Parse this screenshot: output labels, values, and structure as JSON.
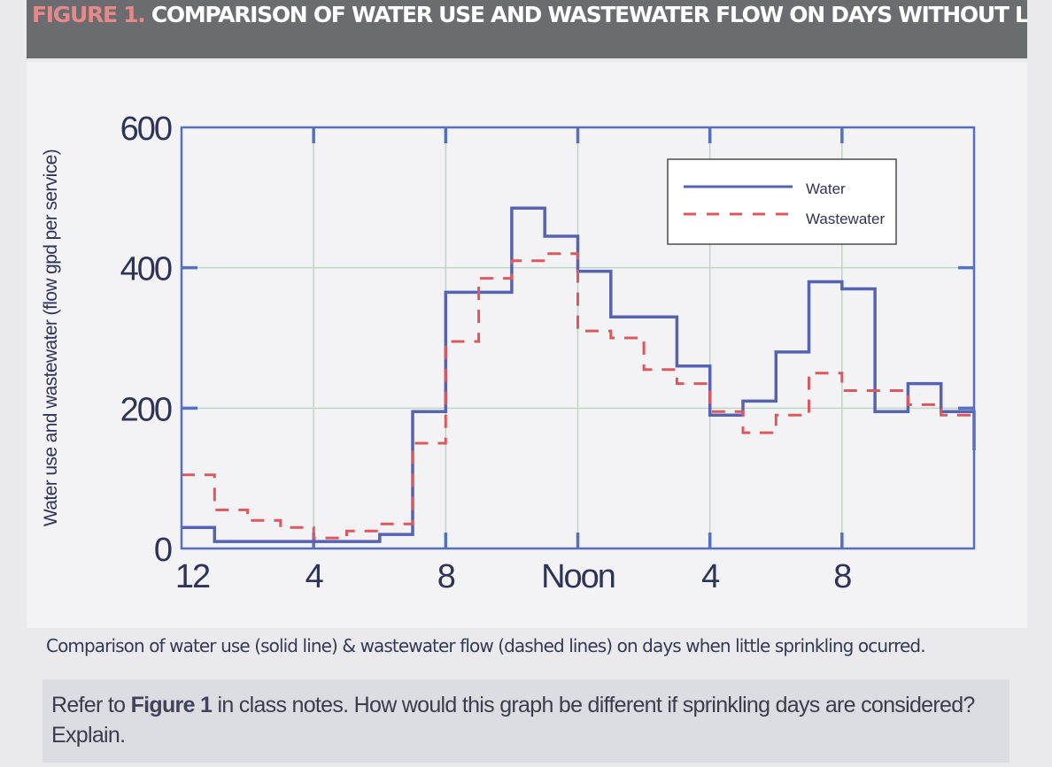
{
  "header": {
    "figure_label": "FIGURE 1.",
    "title": "COMPARISON OF WATER USE AND WASTEWATER FLOW ON DAYS WITHOUT LAWN SPRINKLIN"
  },
  "caption": "Comparison of water use (solid line) & wastewater flow (dashed lines) on days when little sprinkling ocurred.",
  "question": {
    "prefix": "Refer to ",
    "bold": "Figure 1",
    "suffix": " in class notes. How would this graph be different if sprinkling days are considered? Explain."
  },
  "chart_data": {
    "type": "line",
    "step": true,
    "ylabel": "Water use and wastewater (flow gpd per service)",
    "xlabel": "",
    "ylim": [
      0,
      600
    ],
    "xlim": [
      0,
      24
    ],
    "y_ticks": [
      0,
      200,
      400,
      600
    ],
    "y_tick_labels": [
      "0",
      "200",
      "400",
      "600"
    ],
    "x_ticks": [
      0,
      4,
      8,
      12,
      16,
      20
    ],
    "x_tick_labels": [
      "12",
      "4",
      "8",
      "Noon",
      "4",
      "8"
    ],
    "grid": true,
    "legend": {
      "position": "top-right",
      "entries": [
        "Water",
        "Wastewater"
      ]
    },
    "series": [
      {
        "name": "Water",
        "style": "solid",
        "color": "#5563b0",
        "x": [
          0,
          1,
          2,
          3,
          4,
          5,
          6,
          7,
          8,
          9,
          10,
          11,
          12,
          13,
          14,
          15,
          16,
          17,
          18,
          19,
          20,
          21,
          22,
          23,
          24
        ],
        "y": [
          30,
          10,
          10,
          10,
          10,
          10,
          20,
          195,
          365,
          365,
          485,
          445,
          395,
          330,
          330,
          260,
          190,
          210,
          280,
          380,
          370,
          195,
          235,
          195,
          140
        ]
      },
      {
        "name": "Wastewater",
        "style": "dashed",
        "color": "#d9595f",
        "x": [
          0,
          1,
          2,
          3,
          4,
          5,
          6,
          7,
          8,
          9,
          10,
          11,
          12,
          13,
          14,
          15,
          16,
          17,
          18,
          19,
          20,
          21,
          22,
          23,
          24
        ],
        "y": [
          105,
          55,
          40,
          30,
          15,
          25,
          35,
          150,
          295,
          385,
          410,
          420,
          310,
          300,
          255,
          235,
          195,
          165,
          190,
          250,
          225,
          225,
          205,
          190,
          190
        ]
      }
    ]
  }
}
